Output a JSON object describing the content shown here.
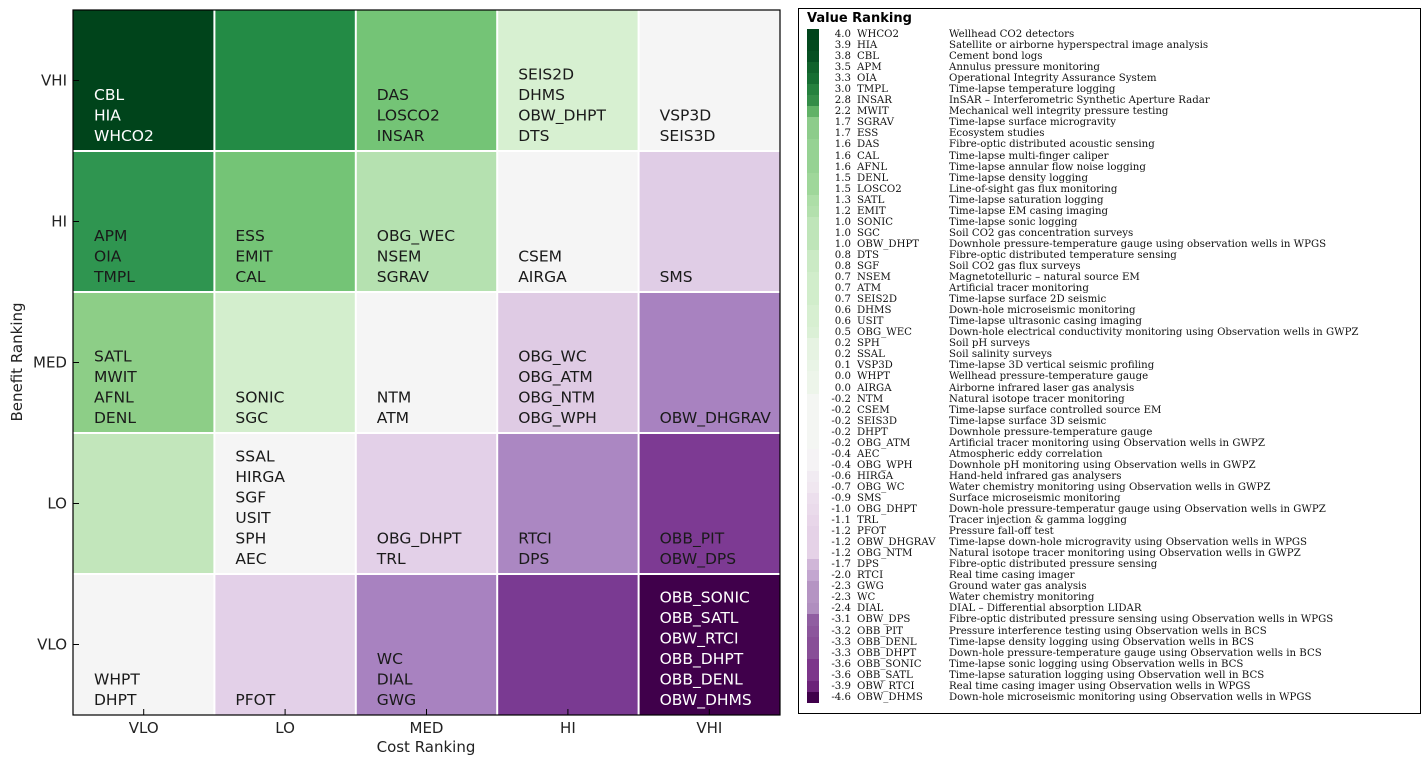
{
  "chart_data": [
    {
      "type": "heatmap",
      "title": "",
      "xlabel": "Cost Ranking",
      "ylabel": "Benefit Ranking",
      "x_categories": [
        "VLO",
        "LO",
        "MED",
        "HI",
        "VHI"
      ],
      "y_categories": [
        "VHI",
        "HI",
        "MED",
        "LO",
        "VLO"
      ],
      "cells": [
        {
          "x": "VLO",
          "y": "VHI",
          "color": "#00441b",
          "text_color": "#ffffff",
          "items": [
            "CBL",
            "HIA",
            "WHCO2"
          ]
        },
        {
          "x": "LO",
          "y": "VHI",
          "color": "#238b45",
          "text_color": "#ffffff",
          "items": []
        },
        {
          "x": "MED",
          "y": "VHI",
          "color": "#74c476",
          "text_color": "#1a1a1a",
          "items": [
            "DAS",
            "LOSCO2",
            "INSAR"
          ]
        },
        {
          "x": "HI",
          "y": "VHI",
          "color": "#d7f0d1",
          "text_color": "#1a1a1a",
          "items": [
            "SEIS2D",
            "DHMS",
            "OBW_DHPT",
            "DTS"
          ]
        },
        {
          "x": "VHI",
          "y": "VHI",
          "color": "#f5f5f5",
          "text_color": "#1a1a1a",
          "items": [
            "VSP3D",
            "SEIS3D"
          ]
        },
        {
          "x": "VLO",
          "y": "HI",
          "color": "#2f9550",
          "text_color": "#1a1a1a",
          "items": [
            "APM",
            "OIA",
            "TMPL"
          ]
        },
        {
          "x": "LO",
          "y": "HI",
          "color": "#74c476",
          "text_color": "#1a1a1a",
          "items": [
            "ESS",
            "EMIT",
            "CAL"
          ]
        },
        {
          "x": "MED",
          "y": "HI",
          "color": "#b5e1b0",
          "text_color": "#1a1a1a",
          "items": [
            "OBG_WEC",
            "NSEM",
            "SGRAV"
          ]
        },
        {
          "x": "HI",
          "y": "HI",
          "color": "#f5f5f5",
          "text_color": "#1a1a1a",
          "items": [
            "CSEM",
            "AIRGA"
          ]
        },
        {
          "x": "VHI",
          "y": "HI",
          "color": "#e0cde6",
          "text_color": "#1a1a1a",
          "items": [
            "SMS"
          ]
        },
        {
          "x": "VLO",
          "y": "MED",
          "color": "#8dce87",
          "text_color": "#1a1a1a",
          "items": [
            "SATL",
            "MWIT",
            "AFNL",
            "DENL"
          ]
        },
        {
          "x": "LO",
          "y": "MED",
          "color": "#d3eecd",
          "text_color": "#1a1a1a",
          "items": [
            "SONIC",
            "SGC"
          ]
        },
        {
          "x": "MED",
          "y": "MED",
          "color": "#f5f5f5",
          "text_color": "#1a1a1a",
          "items": [
            "NTM",
            "ATM"
          ]
        },
        {
          "x": "HI",
          "y": "MED",
          "color": "#dfcbe4",
          "text_color": "#1a1a1a",
          "items": [
            "OBG_WC",
            "OBG_ATM",
            "OBG_NTM",
            "OBG_WPH"
          ]
        },
        {
          "x": "VHI",
          "y": "MED",
          "color": "#a882c0",
          "text_color": "#1a1a1a",
          "items": [
            "OBW_DHGRAV"
          ]
        },
        {
          "x": "VLO",
          "y": "LO",
          "color": "#c2e6bb",
          "text_color": "#1a1a1a",
          "items": []
        },
        {
          "x": "LO",
          "y": "LO",
          "color": "#f5f5f5",
          "text_color": "#1a1a1a",
          "items": [
            "SSAL",
            "HIRGA",
            "SGF",
            "USIT",
            "SPH",
            "AEC"
          ]
        },
        {
          "x": "MED",
          "y": "LO",
          "color": "#e3d0e8",
          "text_color": "#1a1a1a",
          "items": [
            "OBG_DHPT",
            "TRL"
          ]
        },
        {
          "x": "HI",
          "y": "LO",
          "color": "#ab87c2",
          "text_color": "#1a1a1a",
          "items": [
            "RTCI",
            "DPS"
          ]
        },
        {
          "x": "VHI",
          "y": "LO",
          "color": "#7d3a93",
          "text_color": "#1a1a1a",
          "items": [
            "OBB_PIT",
            "OBW_DPS"
          ]
        },
        {
          "x": "VLO",
          "y": "VLO",
          "color": "#f5f5f5",
          "text_color": "#1a1a1a",
          "items": [
            "WHPT",
            "DHPT"
          ]
        },
        {
          "x": "LO",
          "y": "VLO",
          "color": "#e3d0e8",
          "text_color": "#1a1a1a",
          "items": [
            "PFOT"
          ]
        },
        {
          "x": "MED",
          "y": "VLO",
          "color": "#a882c0",
          "text_color": "#1a1a1a",
          "items": [
            "WC",
            "DIAL",
            "GWG"
          ]
        },
        {
          "x": "HI",
          "y": "VLO",
          "color": "#7a3a92",
          "text_color": "#ffffff",
          "items": []
        },
        {
          "x": "VHI",
          "y": "VLO",
          "color": "#40004b",
          "text_color": "#ffffff",
          "items": [
            "OBB_SONIC",
            "OBB_SATL",
            "OBW_RTCI",
            "OBB_DHPT",
            "OBB_DENL",
            "OBW_DHMS"
          ]
        }
      ]
    },
    {
      "type": "table",
      "title": "Value Ranking",
      "rows": [
        {
          "value": 4.0,
          "code": "WHCO2",
          "desc": "Wellhead CO2 detectors"
        },
        {
          "value": 3.9,
          "code": "HIA",
          "desc": "Satellite or airborne hyperspectral image analysis"
        },
        {
          "value": 3.8,
          "code": "CBL",
          "desc": "Cement bond logs"
        },
        {
          "value": 3.5,
          "code": "APM",
          "desc": "Annulus pressure monitoring"
        },
        {
          "value": 3.3,
          "code": "OIA",
          "desc": "Operational Integrity Assurance System"
        },
        {
          "value": 3.0,
          "code": "TMPL",
          "desc": "Time-lapse temperature logging"
        },
        {
          "value": 2.8,
          "code": "INSAR",
          "desc": "InSAR – Interferometric Synthetic Aperture Radar"
        },
        {
          "value": 2.2,
          "code": "MWIT",
          "desc": "Mechanical well integrity pressure testing"
        },
        {
          "value": 1.7,
          "code": "SGRAV",
          "desc": "Time-lapse surface microgravity"
        },
        {
          "value": 1.7,
          "code": "ESS",
          "desc": "Ecosystem studies"
        },
        {
          "value": 1.6,
          "code": "DAS",
          "desc": "Fibre-optic distributed acoustic sensing"
        },
        {
          "value": 1.6,
          "code": "CAL",
          "desc": "Time-lapse multi-finger caliper"
        },
        {
          "value": 1.6,
          "code": "AFNL",
          "desc": "Time-lapse annular flow noise logging"
        },
        {
          "value": 1.5,
          "code": "DENL",
          "desc": "Time-lapse density logging"
        },
        {
          "value": 1.5,
          "code": "LOSCO2",
          "desc": "Line-of-sight gas flux monitoring"
        },
        {
          "value": 1.3,
          "code": "SATL",
          "desc": "Time-lapse saturation logging"
        },
        {
          "value": 1.2,
          "code": "EMIT",
          "desc": "Time-lapse EM casing imaging"
        },
        {
          "value": 1.0,
          "code": "SONIC",
          "desc": "Time-lapse sonic logging"
        },
        {
          "value": 1.0,
          "code": "SGC",
          "desc": "Soil CO2 gas concentration surveys"
        },
        {
          "value": 1.0,
          "code": "OBW_DHPT",
          "desc": "Downhole pressure-temperature gauge using observation wells in WPGS"
        },
        {
          "value": 0.8,
          "code": "DTS",
          "desc": "Fibre-optic distributed temperature sensing"
        },
        {
          "value": 0.8,
          "code": "SGF",
          "desc": "Soil CO2 gas flux surveys"
        },
        {
          "value": 0.7,
          "code": "NSEM",
          "desc": "Magnetotelluric – natural source EM"
        },
        {
          "value": 0.7,
          "code": "ATM",
          "desc": "Artificial tracer monitoring"
        },
        {
          "value": 0.7,
          "code": "SEIS2D",
          "desc": "Time-lapse surface 2D seismic"
        },
        {
          "value": 0.6,
          "code": "DHMS",
          "desc": "Down-hole microseismic monitoring"
        },
        {
          "value": 0.6,
          "code": "USIT",
          "desc": "Time-lapse ultrasonic casing imaging"
        },
        {
          "value": 0.5,
          "code": "OBG_WEC",
          "desc": "Down-hole electrical conductivity monitoring using Observation wells in GWPZ"
        },
        {
          "value": 0.2,
          "code": "SPH",
          "desc": "Soil pH surveys"
        },
        {
          "value": 0.2,
          "code": "SSAL",
          "desc": "Soil salinity surveys"
        },
        {
          "value": 0.1,
          "code": "VSP3D",
          "desc": "Time-lapse 3D vertical seismic profiling"
        },
        {
          "value": 0.0,
          "code": "WHPT",
          "desc": "Wellhead pressure-temperature gauge"
        },
        {
          "value": 0.0,
          "code": "AIRGA",
          "desc": "Airborne infrared laser gas analysis"
        },
        {
          "value": -0.2,
          "code": "NTM",
          "desc": "Natural isotope tracer monitoring"
        },
        {
          "value": -0.2,
          "code": "CSEM",
          "desc": "Time-lapse surface controlled source EM"
        },
        {
          "value": -0.2,
          "code": "SEIS3D",
          "desc": "Time-lapse surface 3D seismic"
        },
        {
          "value": -0.2,
          "code": "DHPT",
          "desc": "Downhole pressure-temperature gauge"
        },
        {
          "value": -0.2,
          "code": "OBG_ATM",
          "desc": "Artificial tracer monitoring using Observation wells in GWPZ"
        },
        {
          "value": -0.4,
          "code": "AEC",
          "desc": "Atmospheric eddy correlation"
        },
        {
          "value": -0.4,
          "code": "OBG_WPH",
          "desc": "Downhole pH monitoring  using Observation wells in GWPZ"
        },
        {
          "value": -0.6,
          "code": "HIRGA",
          "desc": "Hand-held infrared gas analysers"
        },
        {
          "value": -0.7,
          "code": "OBG_WC",
          "desc": "Water chemistry monitoring using Observation wells in GWPZ"
        },
        {
          "value": -0.9,
          "code": "SMS",
          "desc": "Surface microseismic monitoring"
        },
        {
          "value": -1.0,
          "code": "OBG_DHPT",
          "desc": "Down-hole pressure-temperatur gauge using Observation wells in GWPZ"
        },
        {
          "value": -1.1,
          "code": "TRL",
          "desc": "Tracer injection & gamma logging"
        },
        {
          "value": -1.2,
          "code": "PFOT",
          "desc": "Pressure fall-off test"
        },
        {
          "value": -1.2,
          "code": "OBW_DHGRAV",
          "desc": "Time-lapse down-hole microgravity using Observation wells in WPGS"
        },
        {
          "value": -1.2,
          "code": "OBG_NTM",
          "desc": "Natural isotope tracer monitoring using Observation wells in GWPZ"
        },
        {
          "value": -1.7,
          "code": "DPS",
          "desc": "Fibre-optic distributed pressure sensing"
        },
        {
          "value": -2.0,
          "code": "RTCI",
          "desc": "Real time casing imager"
        },
        {
          "value": -2.3,
          "code": "GWG",
          "desc": "Ground water gas analysis"
        },
        {
          "value": -2.3,
          "code": "WC",
          "desc": "Water chemistry monitoring"
        },
        {
          "value": -2.4,
          "code": "DIAL",
          "desc": "DIAL – Differential absorption LIDAR"
        },
        {
          "value": -3.1,
          "code": "OBW_DPS",
          "desc": "Fibre-optic distributed pressure sensing using Observation wells in WPGS"
        },
        {
          "value": -3.2,
          "code": "OBB_PIT",
          "desc": "Pressure interference testing using Observation wells in BCS"
        },
        {
          "value": -3.3,
          "code": "OBB_DENL",
          "desc": "Time-lapse density logging using Observation wells in BCS"
        },
        {
          "value": -3.3,
          "code": "OBB_DHPT",
          "desc": "Down-hole pressure-temperature gauge using Observation wells in BCS"
        },
        {
          "value": -3.6,
          "code": "OBB_SONIC",
          "desc": "Time-lapse sonic logging using Observation wells in BCS"
        },
        {
          "value": -3.6,
          "code": "OBB_SATL",
          "desc": "Time-lapse saturation logging using Observation well in BCS"
        },
        {
          "value": -3.9,
          "code": "OBW_RTCI",
          "desc": "Real time casing imager using Observation wells in WPGS"
        },
        {
          "value": -4.6,
          "code": "OBW_DHMS",
          "desc": "Down-hole microseismic monitoring using Observation wells in WPGS"
        }
      ]
    }
  ]
}
